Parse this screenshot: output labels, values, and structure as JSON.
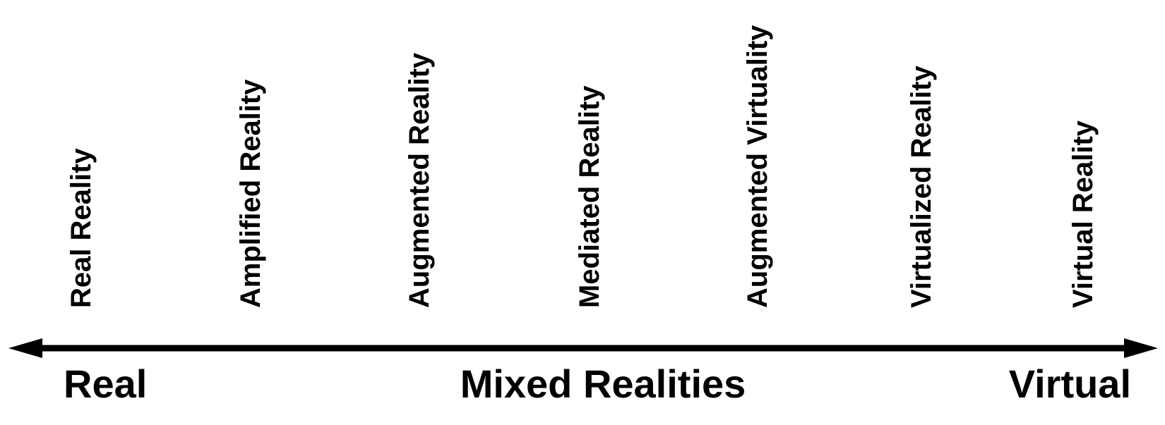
{
  "diagram": {
    "title": "",
    "stages": [
      "Real Reality",
      "Amplified Reality",
      "Augmented Reality",
      "Mediated Reality",
      "Augmented Virtuality",
      "Virtualized Reality",
      "Virtual Reality"
    ],
    "axis": {
      "left_label": "Real",
      "center_label": "Mixed Realities",
      "right_label": "Virtual",
      "bidirectional": true
    },
    "colors": {
      "ink": "#000000",
      "background": "#ffffff"
    }
  }
}
